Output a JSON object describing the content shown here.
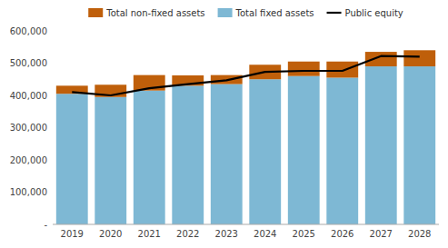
{
  "chart_data": {
    "type": "bar",
    "stacked": true,
    "categories": [
      "2019",
      "2020",
      "2021",
      "2022",
      "2023",
      "2024",
      "2025",
      "2026",
      "2027",
      "2028"
    ],
    "series": [
      {
        "name": "Total fixed assets",
        "color": "#7EB8D4",
        "values": [
          405000,
          395000,
          415000,
          430000,
          435000,
          450000,
          460000,
          455000,
          490000,
          490000
        ]
      },
      {
        "name": "Total non-fixed assets",
        "color": "#BF5F0A",
        "values": [
          25000,
          38000,
          48000,
          32000,
          28000,
          45000,
          45000,
          50000,
          45000,
          50000
        ]
      },
      {
        "name": "Public equity",
        "type": "line",
        "color": "#000000",
        "values": [
          410000,
          400000,
          422000,
          435000,
          447000,
          473000,
          476000,
          476000,
          522000,
          520000
        ]
      }
    ],
    "ylim": [
      0,
      600000
    ],
    "yticks": [
      {
        "value": 0,
        "label": "-"
      },
      {
        "value": 100000,
        "label": "100,000"
      },
      {
        "value": 200000,
        "label": "200,000"
      },
      {
        "value": 300000,
        "label": "300,000"
      },
      {
        "value": 400000,
        "label": "400,000"
      },
      {
        "value": 500000,
        "label": "500,000"
      },
      {
        "value": 600000,
        "label": "600,000"
      }
    ],
    "grid": false,
    "legend": "top"
  }
}
